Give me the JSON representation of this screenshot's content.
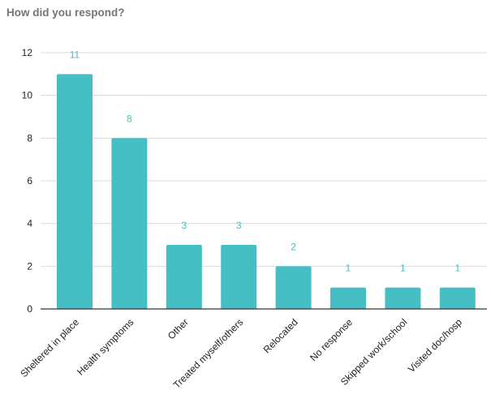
{
  "chart_data": {
    "type": "bar",
    "title": "How did you respond?",
    "xlabel": "",
    "ylabel": "",
    "categories": [
      "Sheltered in place",
      "Health symptoms",
      "Other",
      "Treated myself/others",
      "Relocated",
      "No response",
      "Skipped work/school",
      "Visited doc/hosp"
    ],
    "values": [
      11,
      8,
      3,
      3,
      2,
      1,
      1,
      1
    ],
    "ylim": [
      0,
      12
    ],
    "yticks": [
      0,
      2,
      4,
      6,
      8,
      10,
      12
    ],
    "grid": true,
    "legend": "none",
    "colors": {
      "bar": "#45bec4",
      "data_label": "#45bec4",
      "grid": "#d9d9d9",
      "axis": "#333333",
      "title": "#757575"
    }
  }
}
